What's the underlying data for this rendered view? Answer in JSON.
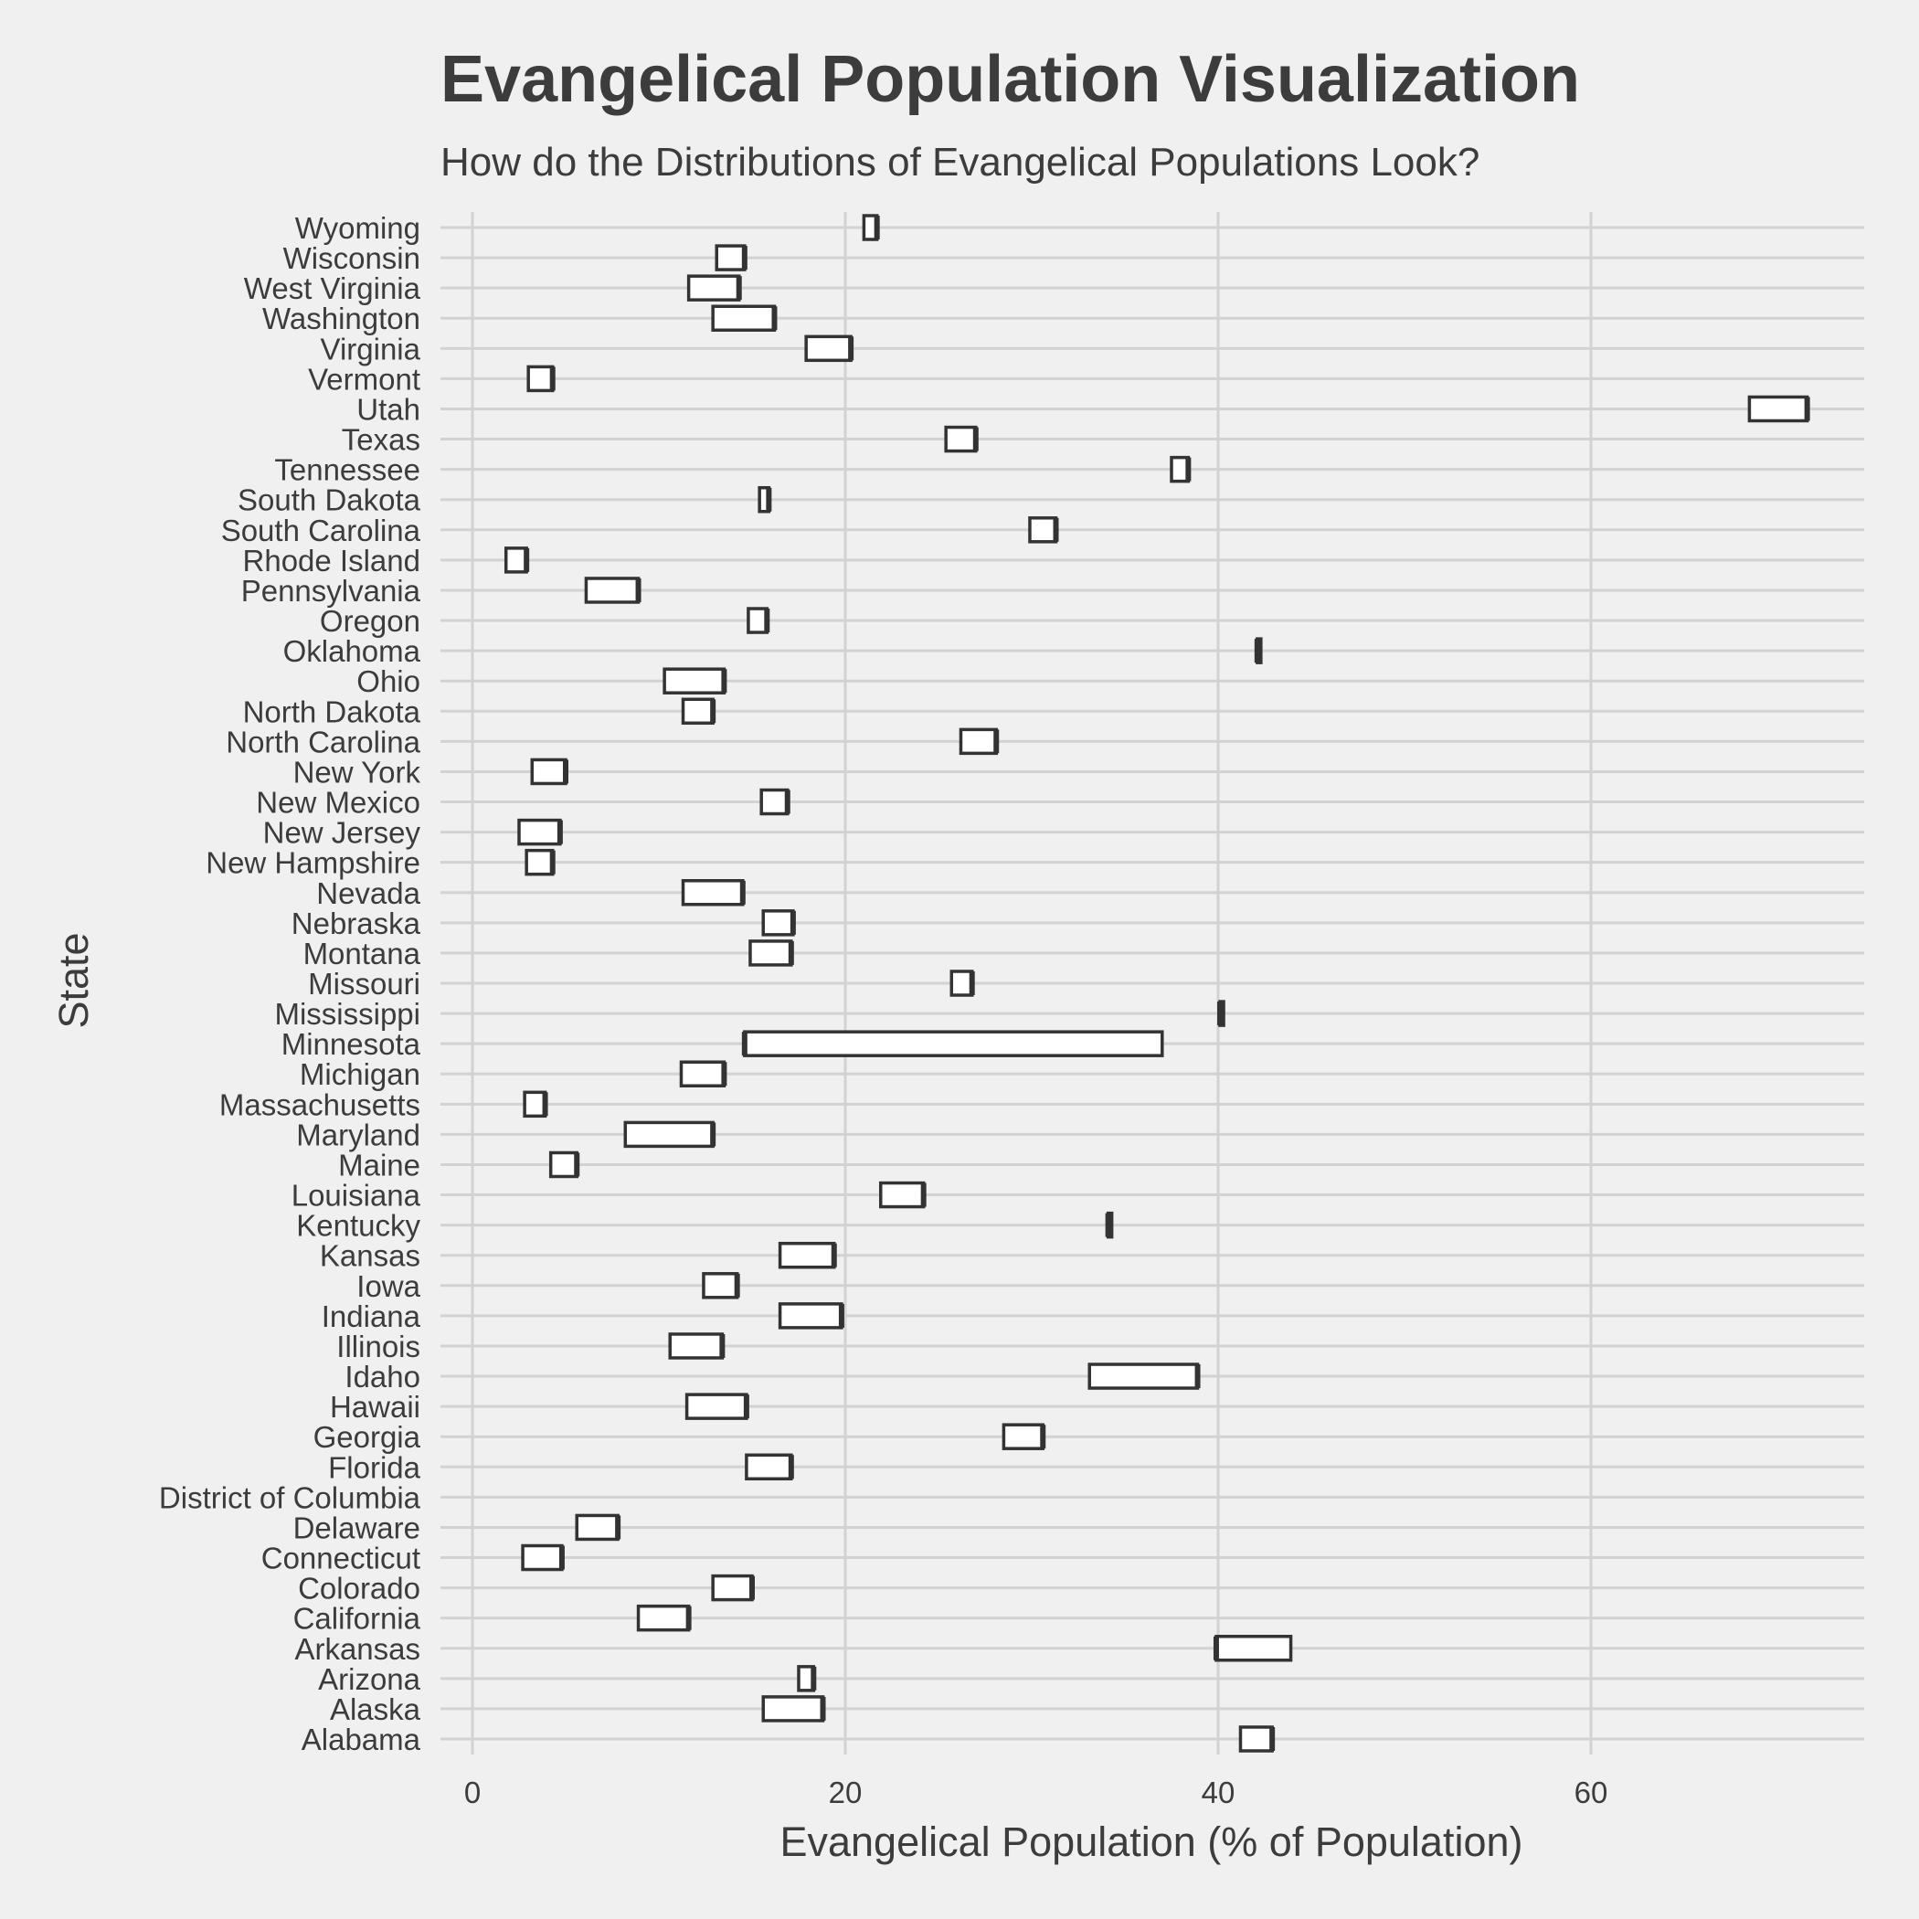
{
  "chart_data": {
    "type": "boxplot",
    "title": "Evangelical Population Visualization",
    "subtitle": "How do the Distributions of Evangelical Populations Look?",
    "xlabel": "Evangelical Population (% of Population)",
    "ylabel": "State",
    "xlim": [
      -3,
      75
    ],
    "xticks": [
      0,
      20,
      40,
      60
    ],
    "grid": true,
    "categories": [
      "Alabama",
      "Alaska",
      "Arizona",
      "Arkansas",
      "California",
      "Colorado",
      "Connecticut",
      "Delaware",
      "District of Columbia",
      "Florida",
      "Georgia",
      "Hawaii",
      "Idaho",
      "Illinois",
      "Indiana",
      "Iowa",
      "Kansas",
      "Kentucky",
      "Louisiana",
      "Maine",
      "Maryland",
      "Massachusetts",
      "Michigan",
      "Minnesota",
      "Mississippi",
      "Missouri",
      "Montana",
      "Nebraska",
      "Nevada",
      "New Hampshire",
      "New Jersey",
      "New Mexico",
      "New York",
      "North Carolina",
      "North Dakota",
      "Ohio",
      "Oklahoma",
      "Oregon",
      "Pennsylvania",
      "Rhode Island",
      "South Carolina",
      "South Dakota",
      "Tennessee",
      "Texas",
      "Utah",
      "Vermont",
      "Virginia",
      "Washington",
      "West Virginia",
      "Wisconsin",
      "Wyoming"
    ],
    "boxes": [
      {
        "state": "Alabama",
        "q1": 41.2,
        "median": 42.9,
        "q3": 42.9
      },
      {
        "state": "Alaska",
        "q1": 15.6,
        "median": 18.8,
        "q3": 18.8
      },
      {
        "state": "Arizona",
        "q1": 17.5,
        "median": 18.3,
        "q3": 18.3
      },
      {
        "state": "Arkansas",
        "q1": 39.9,
        "median": 39.9,
        "q3": 43.9
      },
      {
        "state": "California",
        "q1": 8.9,
        "median": 11.6,
        "q3": 11.6
      },
      {
        "state": "Colorado",
        "q1": 12.9,
        "median": 15.0,
        "q3": 15.0
      },
      {
        "state": "Connecticut",
        "q1": 2.7,
        "median": 4.8,
        "q3": 4.8
      },
      {
        "state": "Delaware",
        "q1": 5.6,
        "median": 7.8,
        "q3": 7.8
      },
      {
        "state": "District of Columbia",
        "q1": null,
        "median": null,
        "q3": null
      },
      {
        "state": "Florida",
        "q1": 14.7,
        "median": 17.1,
        "q3": 17.1
      },
      {
        "state": "Georgia",
        "q1": 28.5,
        "median": 30.6,
        "q3": 30.6
      },
      {
        "state": "Hawaii",
        "q1": 11.5,
        "median": 14.7,
        "q3": 14.7
      },
      {
        "state": "Idaho",
        "q1": 33.1,
        "median": 38.9,
        "q3": 38.9
      },
      {
        "state": "Illinois",
        "q1": 10.6,
        "median": 13.4,
        "q3": 13.4
      },
      {
        "state": "Indiana",
        "q1": 16.5,
        "median": 19.8,
        "q3": 19.8
      },
      {
        "state": "Iowa",
        "q1": 12.4,
        "median": 14.2,
        "q3": 14.2
      },
      {
        "state": "Kansas",
        "q1": 16.5,
        "median": 19.4,
        "q3": 19.4
      },
      {
        "state": "Kentucky",
        "q1": 34.1,
        "median": 34.1,
        "q3": 34.1
      },
      {
        "state": "Louisiana",
        "q1": 21.9,
        "median": 24.2,
        "q3": 24.2
      },
      {
        "state": "Maine",
        "q1": 4.2,
        "median": 5.6,
        "q3": 5.6
      },
      {
        "state": "Maryland",
        "q1": 8.2,
        "median": 12.9,
        "q3": 12.9
      },
      {
        "state": "Massachusetts",
        "q1": 2.8,
        "median": 3.9,
        "q3": 3.9
      },
      {
        "state": "Michigan",
        "q1": 11.2,
        "median": 13.5,
        "q3": 13.5
      },
      {
        "state": "Minnesota",
        "q1": 14.6,
        "median": 14.6,
        "q3": 37.0
      },
      {
        "state": "Mississippi",
        "q1": 40.1,
        "median": 40.1,
        "q3": 40.1
      },
      {
        "state": "Missouri",
        "q1": 25.7,
        "median": 26.8,
        "q3": 26.8
      },
      {
        "state": "Montana",
        "q1": 14.9,
        "median": 17.1,
        "q3": 17.1
      },
      {
        "state": "Nebraska",
        "q1": 15.6,
        "median": 17.2,
        "q3": 17.2
      },
      {
        "state": "Nevada",
        "q1": 11.3,
        "median": 14.5,
        "q3": 14.5
      },
      {
        "state": "New Hampshire",
        "q1": 2.9,
        "median": 4.3,
        "q3": 4.3
      },
      {
        "state": "New Jersey",
        "q1": 2.5,
        "median": 4.7,
        "q3": 4.7
      },
      {
        "state": "New Mexico",
        "q1": 15.5,
        "median": 16.9,
        "q3": 16.9
      },
      {
        "state": "New York",
        "q1": 3.2,
        "median": 5.0,
        "q3": 5.0
      },
      {
        "state": "North Carolina",
        "q1": 26.2,
        "median": 28.1,
        "q3": 28.1
      },
      {
        "state": "North Dakota",
        "q1": 11.3,
        "median": 12.9,
        "q3": 12.9
      },
      {
        "state": "Ohio",
        "q1": 10.3,
        "median": 13.5,
        "q3": 13.5
      },
      {
        "state": "Oklahoma",
        "q1": 42.1,
        "median": 42.1,
        "q3": 42.1
      },
      {
        "state": "Oregon",
        "q1": 14.8,
        "median": 15.8,
        "q3": 15.8
      },
      {
        "state": "Pennsylvania",
        "q1": 6.1,
        "median": 8.9,
        "q3": 8.9
      },
      {
        "state": "Rhode Island",
        "q1": 1.8,
        "median": 2.9,
        "q3": 2.9
      },
      {
        "state": "South Carolina",
        "q1": 29.9,
        "median": 31.3,
        "q3": 31.3
      },
      {
        "state": "South Dakota",
        "q1": 15.4,
        "median": 15.9,
        "q3": 15.9
      },
      {
        "state": "Tennessee",
        "q1": 37.5,
        "median": 38.4,
        "q3": 38.4
      },
      {
        "state": "Texas",
        "q1": 25.4,
        "median": 27.0,
        "q3": 27.0
      },
      {
        "state": "Utah",
        "q1": 68.5,
        "median": 71.6,
        "q3": 71.6
      },
      {
        "state": "Vermont",
        "q1": 3.0,
        "median": 4.3,
        "q3": 4.3
      },
      {
        "state": "Virginia",
        "q1": 17.9,
        "median": 20.3,
        "q3": 20.3
      },
      {
        "state": "Washington",
        "q1": 12.9,
        "median": 16.2,
        "q3": 16.2
      },
      {
        "state": "West Virginia",
        "q1": 11.6,
        "median": 14.3,
        "q3": 14.3
      },
      {
        "state": "Wisconsin",
        "q1": 13.1,
        "median": 14.6,
        "q3": 14.6
      },
      {
        "state": "Wyoming",
        "q1": 21.0,
        "median": 21.7,
        "q3": 21.7
      }
    ]
  }
}
